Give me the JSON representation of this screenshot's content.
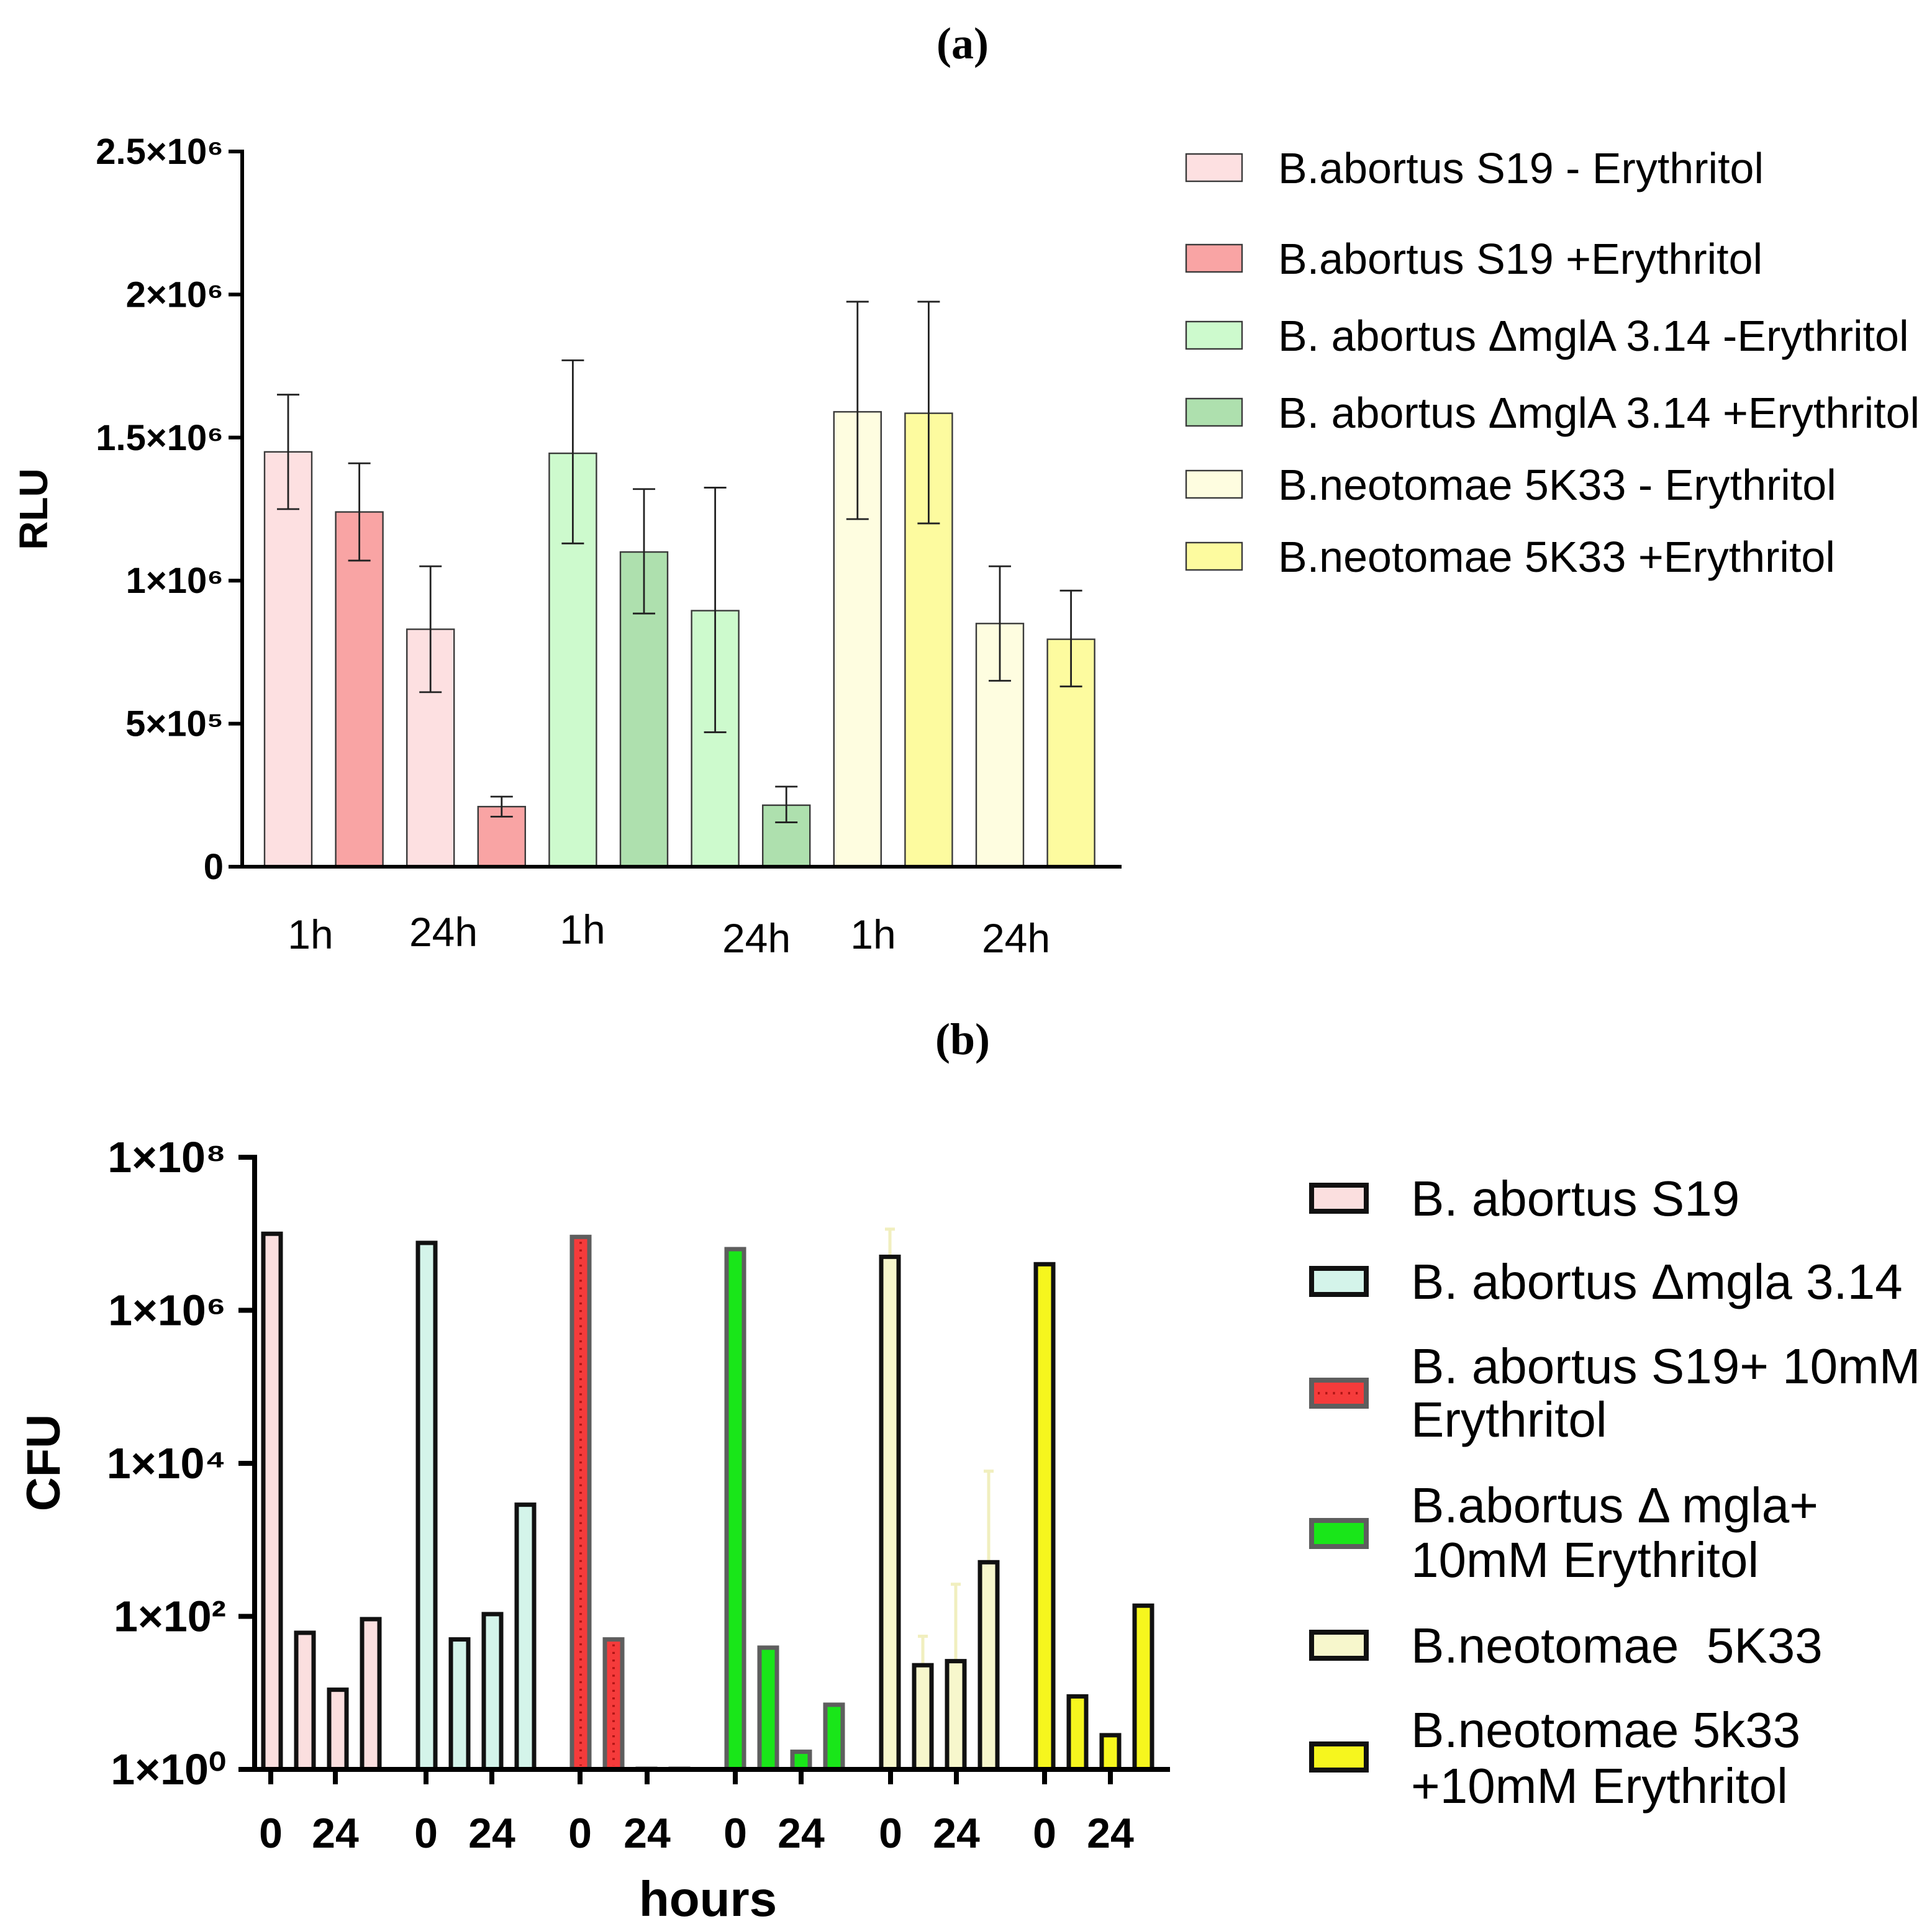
{
  "chart_data": [
    {
      "type": "bar",
      "title": "(a)",
      "ylabel": "RLU",
      "ylim": [
        0,
        2500000
      ],
      "yticks": [
        {
          "value": 0,
          "label": "0"
        },
        {
          "value": 500000,
          "label": "5×10⁵"
        },
        {
          "value": 1000000,
          "label": "1×10⁶"
        },
        {
          "value": 1500000,
          "label": "1.5×10⁶"
        },
        {
          "value": 2000000,
          "label": "2×10⁶"
        },
        {
          "value": 2500000,
          "label": "2.5×10⁶"
        }
      ],
      "x_tick_labels": [
        "1h",
        "24h",
        "1h",
        "24h",
        "1h",
        "24h"
      ],
      "series": [
        {
          "name": "B.abortus S19 - Erythritol",
          "color": "#fde0e1",
          "values": [
            1450000,
            830000
          ],
          "error_low": [
            1250000,
            610000
          ],
          "error_high": [
            1650000,
            1050000
          ]
        },
        {
          "name": "B.abortus S19 +Erythritol",
          "color": "#f9a4a4",
          "values": [
            1240000,
            210000
          ],
          "error_low": [
            1070000,
            175000
          ],
          "error_high": [
            1410000,
            245000
          ]
        },
        {
          "name": "B. abortus ΔmglA 3.14 -Erythritol",
          "color": "#cdfacd",
          "values": [
            1445000,
            895000
          ],
          "error_low": [
            1130000,
            470000
          ],
          "error_high": [
            1770000,
            1325000
          ]
        },
        {
          "name": "B. abortus ΔmglA 3.14 +Erythritol",
          "color": "#aee0ae",
          "values": [
            1100000,
            215000
          ],
          "error_low": [
            885000,
            155000
          ],
          "error_high": [
            1320000,
            280000
          ]
        },
        {
          "name": "B.neotomae 5K33 - Erythritol",
          "color": "#fefde0",
          "values": [
            1590000,
            850000
          ],
          "error_low": [
            1215000,
            650000
          ],
          "error_high": [
            1975000,
            1050000
          ]
        },
        {
          "name": "B.neotomae 5K33 +Erythritol",
          "color": "#fdfb9f",
          "values": [
            1585000,
            795000
          ],
          "error_low": [
            1200000,
            630000
          ],
          "error_high": [
            1975000,
            965000
          ]
        }
      ]
    },
    {
      "type": "bar",
      "title": "(b)",
      "ylabel": "CFU",
      "xlabel": "hours",
      "log_y": true,
      "ylim": [
        1,
        100000000
      ],
      "yticks": [
        {
          "value": 1,
          "label": "1×10⁰"
        },
        {
          "value": 100,
          "label": "1×10²"
        },
        {
          "value": 10000,
          "label": "1×10⁴"
        },
        {
          "value": 1000000,
          "label": "1×10⁶"
        },
        {
          "value": 100000000,
          "label": "1×10⁸"
        }
      ],
      "x_tick_labels": [
        "0",
        "24",
        "0",
        "24",
        "0",
        "24",
        "0",
        "24",
        "0",
        "24",
        "0",
        "24"
      ],
      "series": [
        {
          "name_lines": [
            "B. abortus S19"
          ],
          "color": "#fbdfdf",
          "border": "#111111",
          "values": [
            10000000,
            61,
            11,
            92
          ]
        },
        {
          "name_lines": [
            "B. abortus Δmgla 3.14"
          ],
          "color": "#d4f4ea",
          "border": "#111111",
          "values": [
            7600000,
            50,
            107,
            2880
          ]
        },
        {
          "name_lines": [
            "B. abortus S19+ 10mM",
            "Erythritol"
          ],
          "color": "#f53b3b",
          "border": "#5e5e5e",
          "dotted": true,
          "dot_color": "#b01515",
          "values": [
            9100000,
            50,
            1,
            1
          ]
        },
        {
          "name_lines": [
            "B.abortus Δ mgla+",
            "10mM Erythritol"
          ],
          "color": "#19e619",
          "border": "#5e5e5e",
          "values": [
            6300000,
            39,
            1.7,
            7
          ]
        },
        {
          "name_lines": [
            "B.neotomae  5K33"
          ],
          "color": "#f7f7cc",
          "border": "#111111",
          "values": [
            5000000,
            23,
            26,
            510
          ],
          "error_high": [
            11500000,
            55,
            263,
            7900
          ],
          "error_color": "#f1efbf"
        },
        {
          "name_lines": [
            "B.neotomae 5k33",
            "+10mM Erythritol"
          ],
          "color": "#f6f61e",
          "border": "#111111",
          "values": [
            4000000,
            9,
            2.8,
            138
          ]
        }
      ]
    }
  ]
}
